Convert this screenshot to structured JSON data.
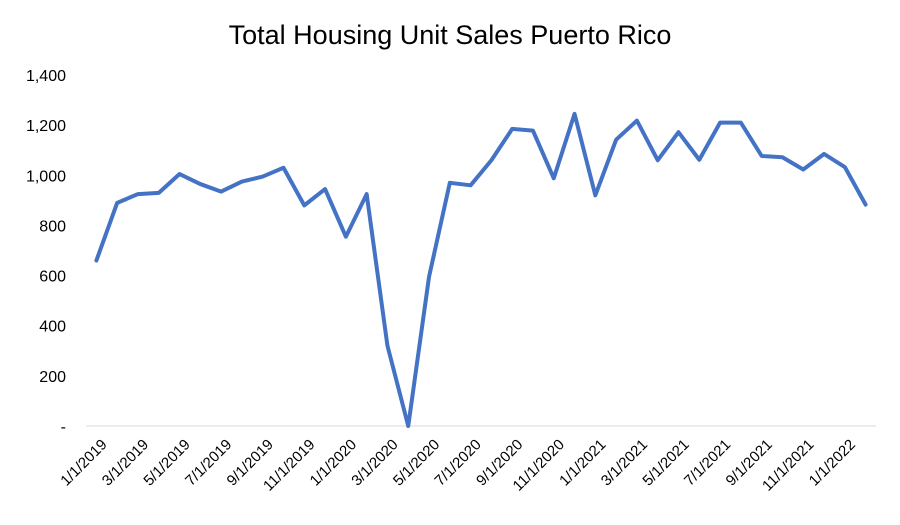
{
  "chart_data": {
    "type": "line",
    "title": "Total Housing Unit Sales Puerto Rico",
    "xlabel": "",
    "ylabel": "",
    "ylim": [
      0,
      1400
    ],
    "y_ticks": [
      {
        "value": 0,
        "label": "-"
      },
      {
        "value": 200,
        "label": "200"
      },
      {
        "value": 400,
        "label": "400"
      },
      {
        "value": 600,
        "label": "600"
      },
      {
        "value": 800,
        "label": "800"
      },
      {
        "value": 1000,
        "label": "1,000"
      },
      {
        "value": 1200,
        "label": "1,200"
      },
      {
        "value": 1400,
        "label": "1,400"
      }
    ],
    "x": [
      "1/1/2019",
      "2/1/2019",
      "3/1/2019",
      "4/1/2019",
      "5/1/2019",
      "6/1/2019",
      "7/1/2019",
      "8/1/2019",
      "9/1/2019",
      "10/1/2019",
      "11/1/2019",
      "12/1/2019",
      "1/1/2020",
      "2/1/2020",
      "3/1/2020",
      "4/1/2020",
      "5/1/2020",
      "6/1/2020",
      "7/1/2020",
      "8/1/2020",
      "9/1/2020",
      "10/1/2020",
      "11/1/2020",
      "12/1/2020",
      "1/1/2021",
      "2/1/2021",
      "3/1/2021",
      "4/1/2021",
      "5/1/2021",
      "6/1/2021",
      "7/1/2021",
      "8/1/2021",
      "9/1/2021",
      "10/1/2021",
      "11/1/2021",
      "12/1/2021",
      "1/1/2022",
      "2/1/2022"
    ],
    "x_tick_labels": [
      "1/1/2019",
      "3/1/2019",
      "5/1/2019",
      "7/1/2019",
      "9/1/2019",
      "11/1/2019",
      "1/1/2020",
      "3/1/2020",
      "5/1/2020",
      "7/1/2020",
      "9/1/2020",
      "11/1/2020",
      "1/1/2021",
      "3/1/2021",
      "5/1/2021",
      "7/1/2021",
      "9/1/2021",
      "11/1/2021",
      "1/1/2022"
    ],
    "series": [
      {
        "values": [
          660,
          890,
          925,
          930,
          1005,
          965,
          935,
          975,
          995,
          1030,
          880,
          945,
          755,
          925,
          320,
          0,
          595,
          970,
          960,
          1060,
          1185,
          1178,
          988,
          1245,
          920,
          1142,
          1218,
          1060,
          1172,
          1062,
          1210,
          1210,
          1077,
          1072,
          1023,
          1085,
          1033,
          883
        ],
        "color": "#4472C4"
      }
    ],
    "grid": false,
    "legend": "none"
  }
}
